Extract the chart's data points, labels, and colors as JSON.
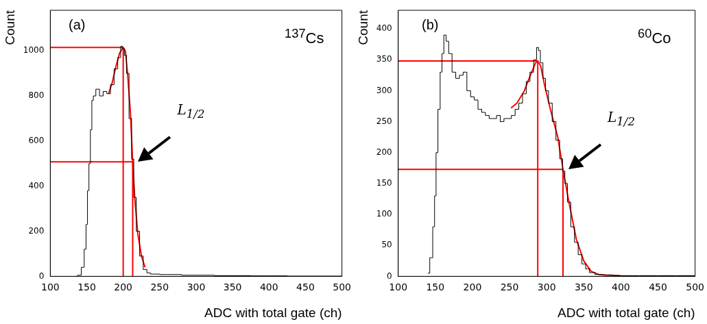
{
  "chart_data": [
    {
      "type": "line",
      "xlabel": "ADC with total gate (ch)",
      "ylabel": "Count",
      "annotations": [
        "(a)",
        "$^{137}$Cs",
        "L$_{1/2}$"
      ],
      "xlim": [
        100,
        500
      ],
      "ylim": [
        0,
        1180
      ],
      "xticks": [
        100,
        150,
        200,
        250,
        300,
        350,
        400,
        450,
        500
      ],
      "yticks": [
        0,
        200,
        400,
        600,
        800,
        1000
      ],
      "grid": false,
      "series": [
        {
          "type": "step",
          "color": "#000000",
          "x": [
            135,
            140,
            145,
            148,
            150,
            152,
            154,
            156,
            158,
            160,
            165,
            170,
            175,
            180,
            185,
            190,
            195,
            198,
            200,
            203,
            206,
            210,
            213,
            216,
            220,
            225,
            230,
            235,
            240,
            260,
            300,
            350,
            400,
            450,
            500
          ],
          "values": [
            0,
            5,
            40,
            120,
            230,
            380,
            500,
            650,
            780,
            800,
            830,
            800,
            820,
            810,
            850,
            920,
            970,
            1020,
            1010,
            980,
            900,
            700,
            520,
            350,
            200,
            90,
            30,
            15,
            10,
            8,
            5,
            3,
            2,
            1,
            1
          ]
        },
        {
          "type": "line",
          "color": "#ff0000",
          "x": [
            180,
            185,
            190,
            195,
            200,
            203,
            206,
            210,
            213,
            216,
            220,
            225,
            230
          ],
          "values": [
            810,
            860,
            930,
            990,
            1015,
            1000,
            900,
            720,
            508,
            340,
            190,
            90,
            40
          ]
        },
        {
          "type": "line",
          "color": "#ff0000",
          "x": [
            100,
            200,
            200
          ],
          "values": [
            1015,
            1015,
            0
          ]
        },
        {
          "type": "line",
          "color": "#ff0000",
          "x": [
            100,
            213,
            213
          ],
          "values": [
            508,
            508,
            0
          ]
        }
      ]
    },
    {
      "type": "line",
      "xlabel": "ADC with total gate (ch)",
      "ylabel": "Count",
      "annotations": [
        "(b)",
        "$^{60}$Co",
        "L$_{1/2}$"
      ],
      "xlim": [
        100,
        500
      ],
      "ylim": [
        0,
        430
      ],
      "xticks": [
        100,
        150,
        200,
        250,
        300,
        350,
        400,
        450,
        500
      ],
      "yticks": [
        0,
        50,
        100,
        150,
        200,
        250,
        300,
        350,
        400
      ],
      "grid": false,
      "series": [
        {
          "type": "step",
          "color": "#000000",
          "x": [
            140,
            145,
            148,
            150,
            152,
            155,
            158,
            160,
            163,
            166,
            170,
            175,
            180,
            185,
            190,
            195,
            200,
            205,
            210,
            215,
            220,
            225,
            230,
            235,
            240,
            245,
            250,
            255,
            260,
            265,
            270,
            275,
            280,
            285,
            288,
            290,
            293,
            297,
            300,
            305,
            310,
            315,
            320,
            323,
            326,
            330,
            335,
            340,
            345,
            350,
            355,
            360,
            370,
            380,
            400,
            450,
            500
          ],
          "values": [
            5,
            30,
            80,
            130,
            200,
            270,
            330,
            360,
            390,
            380,
            360,
            330,
            320,
            325,
            330,
            300,
            290,
            285,
            270,
            265,
            260,
            255,
            255,
            260,
            250,
            255,
            255,
            260,
            270,
            280,
            295,
            315,
            330,
            350,
            370,
            365,
            345,
            320,
            300,
            280,
            250,
            220,
            190,
            170,
            150,
            120,
            80,
            55,
            35,
            20,
            12,
            6,
            3,
            2,
            1,
            1,
            1
          ]
        },
        {
          "type": "line",
          "color": "#ff0000",
          "x": [
            252,
            260,
            270,
            278,
            285,
            288,
            292,
            297,
            305,
            315,
            322,
            330,
            340,
            350,
            360,
            370,
            380,
            400
          ],
          "values": [
            272,
            280,
            300,
            325,
            345,
            348,
            340,
            310,
            270,
            225,
            173,
            120,
            60,
            25,
            8,
            3,
            2,
            1
          ]
        },
        {
          "type": "line",
          "color": "#ff0000",
          "x": [
            100,
            288,
            288
          ],
          "values": [
            348,
            348,
            0
          ]
        },
        {
          "type": "line",
          "color": "#ff0000",
          "x": [
            100,
            322,
            322
          ],
          "values": [
            173,
            173,
            0
          ]
        }
      ]
    }
  ]
}
